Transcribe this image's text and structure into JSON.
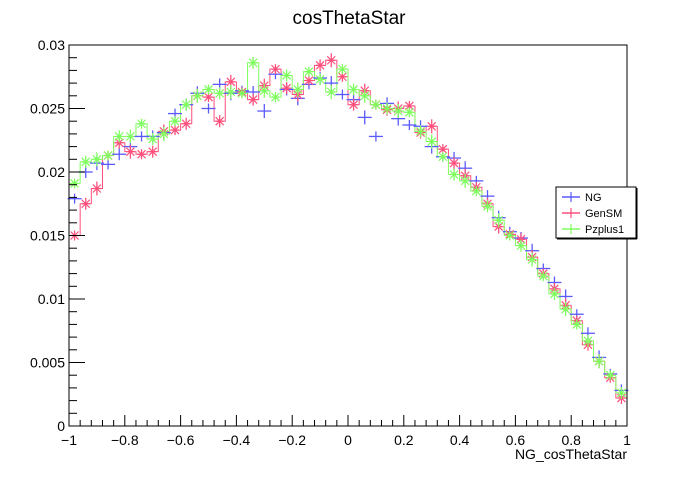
{
  "chart_data": {
    "type": "line",
    "title": "cosThetaStar",
    "xlabel": "NG_cosThetaStar",
    "ylabel": "",
    "xlim": [
      -1,
      1
    ],
    "ylim": [
      0,
      0.03
    ],
    "x_ticks": [
      "−1",
      "−0.8",
      "−0.6",
      "−0.4",
      "−0.2",
      "0",
      "0.2",
      "0.4",
      "0.6",
      "0.8",
      "1"
    ],
    "x_tick_values": [
      -1,
      -0.8,
      -0.6,
      -0.4,
      -0.2,
      0,
      0.2,
      0.4,
      0.6,
      0.8,
      1
    ],
    "y_ticks": [
      "0",
      "0.005",
      "0.01",
      "0.015",
      "0.02",
      "0.025",
      "0.03"
    ],
    "y_tick_values": [
      0,
      0.005,
      0.01,
      0.015,
      0.02,
      0.025,
      0.03
    ],
    "grid": false,
    "legend_position": "right",
    "bins": 50,
    "series": [
      {
        "name": "NG",
        "color": "#5a5aff",
        "marker": "cross",
        "values": [
          0.0179,
          0.02,
          0.0207,
          0.0206,
          0.0214,
          0.022,
          0.0228,
          0.0228,
          0.0231,
          0.0246,
          0.0253,
          0.0262,
          0.025,
          0.0269,
          0.0262,
          0.0264,
          0.0263,
          0.0248,
          0.0277,
          0.0265,
          0.0258,
          0.0269,
          0.0274,
          0.027,
          0.0261,
          0.0257,
          0.0243,
          0.0228,
          0.0254,
          0.0242,
          0.0237,
          0.0236,
          0.022,
          0.0212,
          0.0211,
          0.0203,
          0.0193,
          0.0181,
          0.0164,
          0.0153,
          0.0148,
          0.0138,
          0.0124,
          0.0113,
          0.0102,
          0.0088,
          0.0073,
          0.0054,
          0.0041,
          0.0028
        ]
      },
      {
        "name": "GenSM",
        "color": "#ff4f7b",
        "marker": "star",
        "values": [
          0.015,
          0.0175,
          0.0187,
          0.0213,
          0.0223,
          0.0216,
          0.0214,
          0.0216,
          0.0232,
          0.0233,
          0.0238,
          0.026,
          0.0259,
          0.024,
          0.0271,
          0.0263,
          0.0257,
          0.0268,
          0.0281,
          0.0266,
          0.0261,
          0.0272,
          0.0284,
          0.0288,
          0.0275,
          0.0253,
          0.0264,
          0.0253,
          0.0249,
          0.025,
          0.0252,
          0.0231,
          0.0236,
          0.0218,
          0.0207,
          0.0197,
          0.0188,
          0.0175,
          0.0157,
          0.0151,
          0.0147,
          0.0133,
          0.012,
          0.0108,
          0.0095,
          0.0083,
          0.0064,
          0.0051,
          0.0038,
          0.0022
        ]
      },
      {
        "name": "Pzplus1",
        "color": "#7eff5e",
        "marker": "star",
        "values": [
          0.0191,
          0.0208,
          0.021,
          0.0213,
          0.0228,
          0.0228,
          0.0238,
          0.0226,
          0.023,
          0.024,
          0.0253,
          0.026,
          0.0265,
          0.0262,
          0.0263,
          0.0262,
          0.0286,
          0.0264,
          0.0259,
          0.0276,
          0.0265,
          0.0279,
          0.0273,
          0.0263,
          0.0281,
          0.0265,
          0.026,
          0.0253,
          0.025,
          0.0248,
          0.0247,
          0.0232,
          0.0224,
          0.0212,
          0.0198,
          0.0193,
          0.0185,
          0.0173,
          0.0162,
          0.015,
          0.0142,
          0.0131,
          0.0118,
          0.0104,
          0.0092,
          0.008,
          0.0067,
          0.0051,
          0.004,
          0.0026
        ]
      }
    ]
  }
}
